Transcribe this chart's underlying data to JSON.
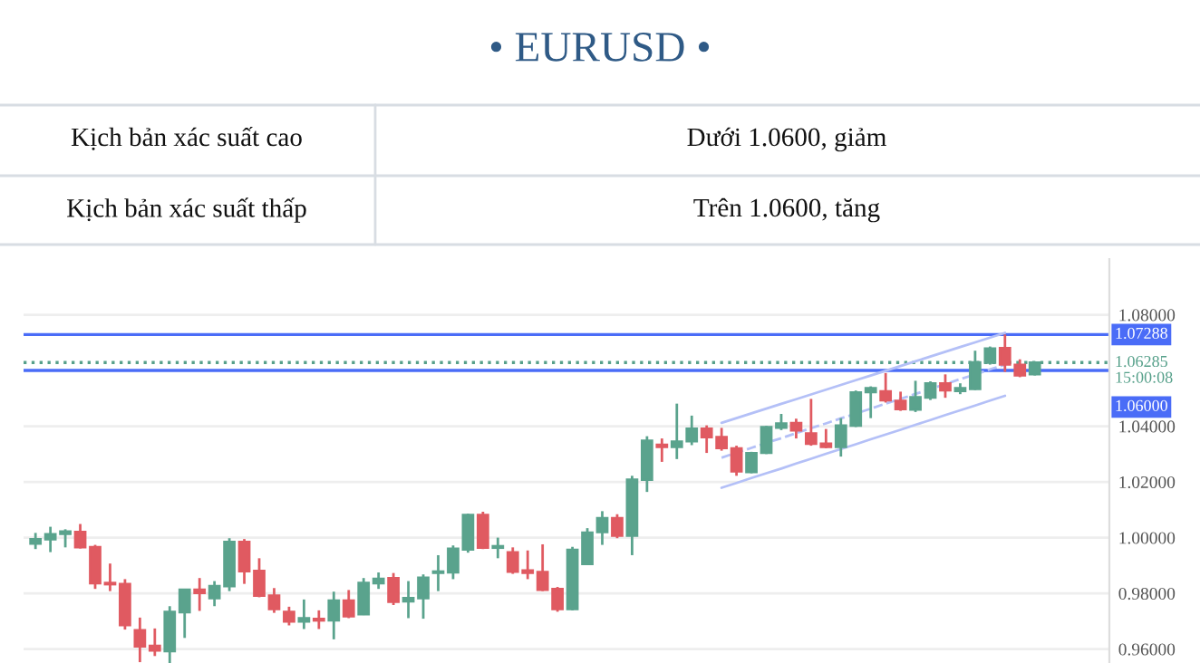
{
  "chart_data": {
    "type": "candlestick",
    "title": "• EURUSD •",
    "annotations": [
      "Kịch bản xác suất cao",
      "Dưới 1.0600, giảm",
      "Kịch bản xác suất thấp",
      "Trên 1.0600, tăng"
    ],
    "categories": [
      null,
      null,
      null,
      null,
      null,
      null,
      null,
      null,
      null,
      null,
      null,
      null,
      null,
      null,
      null,
      null,
      null,
      null,
      null,
      null,
      null,
      null,
      null,
      null,
      null,
      null,
      null,
      null,
      null,
      null,
      null,
      null,
      null,
      null,
      null,
      null,
      null,
      null,
      null,
      null,
      null,
      null,
      null,
      null,
      null,
      null,
      null,
      null,
      null,
      null,
      null,
      null,
      null,
      null,
      null,
      null,
      null,
      null,
      null,
      null,
      null,
      null,
      null,
      null,
      null,
      null,
      null,
      null
    ],
    "ohlc": [
      [
        0.9978,
        1.0017,
        0.9959,
        0.9995
      ],
      [
        0.9993,
        1.0039,
        0.9948,
        1.0013
      ],
      [
        1.0013,
        1.003,
        0.9965,
        1.0023
      ],
      [
        1.0021,
        1.0049,
        0.9961,
        0.9965
      ],
      [
        0.9967,
        0.9974,
        0.9816,
        0.9836
      ],
      [
        0.9838,
        0.9907,
        0.9808,
        0.9832
      ],
      [
        0.9834,
        0.9851,
        0.967,
        0.9685
      ],
      [
        0.9668,
        0.9713,
        0.9553,
        0.9609
      ],
      [
        0.9612,
        0.9674,
        0.9575,
        0.9594
      ],
      [
        0.9592,
        0.9754,
        0.9549,
        0.9734
      ],
      [
        0.9732,
        0.9814,
        0.964,
        0.9814
      ],
      [
        0.9814,
        0.9855,
        0.9737,
        0.9801
      ],
      [
        0.9782,
        0.9844,
        0.9754,
        0.9827
      ],
      [
        0.9825,
        0.9998,
        0.9808,
        0.9985
      ],
      [
        0.9985,
        0.9995,
        0.9834,
        0.9879
      ],
      [
        0.9881,
        0.9926,
        0.9786,
        0.9791
      ],
      [
        0.9793,
        0.9819,
        0.973,
        0.9743
      ],
      [
        0.9734,
        0.9752,
        0.9685,
        0.9698
      ],
      [
        0.9698,
        0.9778,
        0.9672,
        0.9711
      ],
      [
        0.9709,
        0.9739,
        0.9672,
        0.9702
      ],
      [
        0.9702,
        0.9806,
        0.9635,
        0.9775
      ],
      [
        0.9775,
        0.9812,
        0.9711,
        0.9717
      ],
      [
        0.9724,
        0.9855,
        0.9722,
        0.9838
      ],
      [
        0.9836,
        0.9875,
        0.9816,
        0.9853
      ],
      [
        0.9855,
        0.9873,
        0.9758,
        0.9769
      ],
      [
        0.9771,
        0.9844,
        0.9711,
        0.9784
      ],
      [
        0.9782,
        0.9868,
        0.9709,
        0.9857
      ],
      [
        0.9873,
        0.9937,
        0.9808,
        0.9879
      ],
      [
        0.9875,
        0.9972,
        0.9851,
        0.9961
      ],
      [
        0.9957,
        1.0086,
        0.9946,
        1.0082
      ],
      [
        1.0082,
        1.0093,
        0.9959,
        0.9963
      ],
      [
        0.9963,
        1.0,
        0.9926,
        0.997
      ],
      [
        0.9948,
        0.9965,
        0.987,
        0.9877
      ],
      [
        0.9883,
        0.9954,
        0.9851,
        0.9873
      ],
      [
        0.9877,
        0.9976,
        0.9808,
        0.9812
      ],
      [
        0.9816,
        0.9823,
        0.9734,
        0.9743
      ],
      [
        0.9743,
        0.9967,
        0.9739,
        0.9957
      ],
      [
        0.9905,
        1.0034,
        0.9903,
        1.0019
      ],
      [
        1.0019,
        1.0095,
        0.9974,
        1.0071
      ],
      [
        1.0071,
        1.0084,
        0.9998,
        1.0006
      ],
      [
        1.0006,
        1.0222,
        0.9937,
        1.0209
      ],
      [
        1.0207,
        1.0364,
        1.0164,
        1.0349
      ],
      [
        1.0334,
        1.0356,
        1.0272,
        1.0325
      ],
      [
        1.0325,
        1.0481,
        1.0282,
        1.0345
      ],
      [
        1.0345,
        1.0438,
        1.0332,
        1.0392
      ],
      [
        1.0392,
        1.0403,
        1.0304,
        1.036
      ],
      [
        1.0362,
        1.0394,
        1.0312,
        1.0321
      ],
      [
        1.0321,
        1.033,
        1.0222,
        1.0237
      ],
      [
        1.0235,
        1.0308,
        1.0231,
        1.0304
      ],
      [
        1.0304,
        1.0401,
        1.03,
        1.0397
      ],
      [
        1.0394,
        1.0444,
        1.0386,
        1.041
      ],
      [
        1.0412,
        1.0427,
        1.0356,
        1.0384
      ],
      [
        1.0375,
        1.0498,
        1.033,
        1.0336
      ],
      [
        1.0338,
        1.039,
        1.0321,
        1.0325
      ],
      [
        1.0325,
        1.0429,
        1.0291,
        1.0403
      ],
      [
        1.0401,
        1.0528,
        1.0397,
        1.0522
      ],
      [
        1.0522,
        1.0543,
        1.0429,
        1.0537
      ],
      [
        1.0526,
        1.0591,
        1.0485,
        1.0492
      ],
      [
        1.0492,
        1.0524,
        1.0455,
        1.0461
      ],
      [
        1.0459,
        1.0563,
        1.0451,
        1.0505
      ],
      [
        1.0502,
        1.0561,
        1.0494,
        1.0554
      ],
      [
        1.0554,
        1.0586,
        1.0502,
        1.0528
      ],
      [
        1.0526,
        1.0554,
        1.0515,
        1.0537
      ],
      [
        1.0533,
        1.0671,
        1.053,
        1.063
      ],
      [
        1.0627,
        1.0686,
        1.0621,
        1.0679
      ],
      [
        1.0681,
        1.0729,
        1.0595,
        1.0621
      ],
      [
        1.0621,
        1.064,
        1.0576,
        1.0582
      ],
      [
        1.0586,
        1.0629,
        1.0582,
        1.0629
      ]
    ],
    "series": [
      {
        "type": "line",
        "values": [
          null,
          null,
          null,
          null,
          null,
          null,
          null,
          null,
          null,
          null,
          null,
          null,
          null,
          null,
          null,
          null,
          null,
          null,
          null,
          null,
          null,
          null,
          null,
          null,
          null,
          null,
          null,
          null,
          null,
          null,
          null,
          null,
          null,
          null,
          null,
          null,
          null,
          null,
          null,
          null,
          null,
          null,
          null,
          null,
          null,
          null,
          1.0412,
          1.0429,
          1.0446,
          1.0463,
          1.048,
          1.0497,
          1.0514,
          1.0531,
          1.0548,
          1.0565,
          1.0582,
          1.0599,
          1.0616,
          1.0633,
          1.065,
          1.0667,
          1.0684,
          1.0701,
          1.0718,
          1.0735,
          null,
          null
        ],
        "color": "#b4c0f7",
        "line_style": "solid"
      },
      {
        "type": "line",
        "values": [
          null,
          null,
          null,
          null,
          null,
          null,
          null,
          null,
          null,
          null,
          null,
          null,
          null,
          null,
          null,
          null,
          null,
          null,
          null,
          null,
          null,
          null,
          null,
          null,
          null,
          null,
          null,
          null,
          null,
          null,
          null,
          null,
          null,
          null,
          null,
          null,
          null,
          null,
          null,
          null,
          null,
          null,
          null,
          null,
          null,
          null,
          1.0287,
          1.0305,
          1.0322,
          1.034,
          1.0357,
          1.0375,
          1.0393,
          1.041,
          1.0428,
          1.0445,
          1.0463,
          1.0481,
          1.0498,
          1.0516,
          1.0533,
          1.0551,
          1.0569,
          1.0586,
          1.0604,
          1.0621,
          null,
          null
        ],
        "color": "#b4c0f7",
        "line_style": "dashed"
      },
      {
        "type": "line",
        "values": [
          null,
          null,
          null,
          null,
          null,
          null,
          null,
          null,
          null,
          null,
          null,
          null,
          null,
          null,
          null,
          null,
          null,
          null,
          null,
          null,
          null,
          null,
          null,
          null,
          null,
          null,
          null,
          null,
          null,
          null,
          null,
          null,
          null,
          null,
          null,
          null,
          null,
          null,
          null,
          null,
          null,
          null,
          null,
          null,
          null,
          null,
          1.0179,
          1.0196,
          1.0214,
          1.0231,
          1.0248,
          1.0266,
          1.0283,
          1.0301,
          1.0318,
          1.0335,
          1.0353,
          1.037,
          1.0387,
          1.0405,
          1.0422,
          1.044,
          1.0457,
          1.0474,
          1.0492,
          1.0509,
          null,
          null
        ],
        "color": "#b4c0f7",
        "line_style": "solid"
      }
    ],
    "ref_lines": [
      {
        "axis": "y",
        "value": 1.07288,
        "label": "1.07288",
        "color": "#4a6cf7",
        "line_style": "solid"
      },
      {
        "axis": "y",
        "value": 1.06285,
        "label": "1.06285\n15:00:08",
        "color": "#56a08a",
        "line_style": "dotted"
      },
      {
        "axis": "y",
        "value": 1.06,
        "label": "1.06000",
        "color": "#4a6cf7",
        "line_style": "solid"
      }
    ],
    "ylim": [
      0.955,
      1.1
    ],
    "yticks": [
      {
        "value": 0.96,
        "label": "0.96000"
      },
      {
        "value": 0.98,
        "label": "0.98000"
      },
      {
        "value": 1.0,
        "label": "1.00000"
      },
      {
        "value": 1.02,
        "label": "1.02000"
      },
      {
        "value": 1.04,
        "label": "1.04000"
      },
      {
        "value": 1.08,
        "label": "1.08000"
      }
    ],
    "grid": "y",
    "tick_labels": "y"
  }
}
